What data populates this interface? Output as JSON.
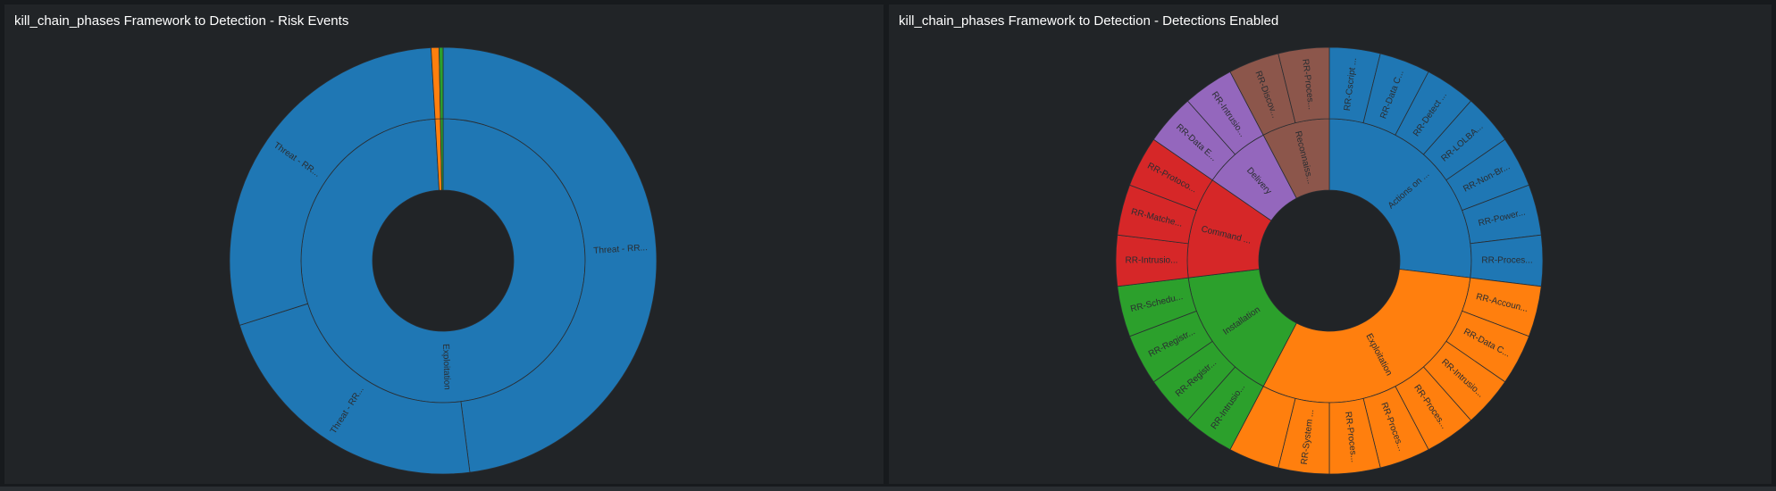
{
  "panels": [
    {
      "title": "kill_chain_phases Framework to Detection - Risk Events"
    },
    {
      "title": "kill_chain_phases Framework to Detection - Detections Enabled"
    }
  ],
  "chart_data": [
    {
      "type": "sunburst",
      "title": "kill_chain_phases Framework to Detection - Risk Events",
      "colors": {
        "blue": "#1f77b4",
        "orange": "#ff7f0e",
        "green": "#2ca02c"
      },
      "nodes": [
        {
          "name": "Exploitation",
          "label": "Exploitation",
          "value": 991,
          "color": "#1f77b4",
          "children": [
            {
              "name": "Threat - RR...",
              "label": "Threat - RR...",
              "value": 480
            },
            {
              "name": "Threat - RR...",
              "label": "Threat - RR...",
              "value": 221
            },
            {
              "name": "Threat - RR...",
              "label": "Threat - RR...",
              "value": 290
            }
          ]
        },
        {
          "name": "",
          "label": "",
          "value": 6,
          "color": "#ff7f0e",
          "children": [
            {
              "name": "",
              "label": "",
              "value": 6
            }
          ]
        },
        {
          "name": "",
          "label": "",
          "value": 3,
          "color": "#2ca02c",
          "children": [
            {
              "name": "",
              "label": "",
              "value": 3
            }
          ]
        }
      ]
    },
    {
      "type": "sunburst",
      "title": "kill_chain_phases Framework to Detection - Detections Enabled",
      "colors": {
        "blue": "#1f77b4",
        "orange": "#ff7f0e",
        "green": "#2ca02c",
        "red": "#d62728",
        "purple": "#9467bd",
        "brown": "#8c564b"
      },
      "nodes": [
        {
          "name": "Actions on ...",
          "label": "Actions on ...",
          "value": 7,
          "color": "#1f77b4",
          "children": [
            {
              "name": "RR-Cscript ...",
              "label": "RR-Cscript ...",
              "value": 1
            },
            {
              "name": "RR-Data C...",
              "label": "RR-Data C...",
              "value": 1
            },
            {
              "name": "RR-Detect ...",
              "label": "RR-Detect ...",
              "value": 1
            },
            {
              "name": "RR-LOLBA...",
              "label": "RR-LOLBA...",
              "value": 1
            },
            {
              "name": "RR-Non-Br...",
              "label": "RR-Non-Br...",
              "value": 1
            },
            {
              "name": "RR-Power...",
              "label": "RR-Power...",
              "value": 1
            },
            {
              "name": "RR-Proces...",
              "label": "RR-Proces...",
              "value": 1
            }
          ]
        },
        {
          "name": "Exploitation",
          "label": "Exploitation",
          "value": 8,
          "color": "#ff7f0e",
          "children": [
            {
              "name": "RR-Accoun...",
              "label": "RR-Accoun...",
              "value": 1
            },
            {
              "name": "RR-Data C...",
              "label": "RR-Data C...",
              "value": 1
            },
            {
              "name": "RR-Intrusio...",
              "label": "RR-Intrusio...",
              "value": 1
            },
            {
              "name": "RR-Proces...",
              "label": "RR-Proces...",
              "value": 1
            },
            {
              "name": "RR-Proces...",
              "label": "RR-Proces...",
              "value": 1
            },
            {
              "name": "RR-Proces...",
              "label": "RR-Proces...",
              "value": 1
            },
            {
              "name": "RR-System ...",
              "label": "RR-System ...",
              "value": 1
            },
            {
              "name": "",
              "label": "",
              "value": 1
            }
          ]
        },
        {
          "name": "Installation",
          "label": "Installation",
          "value": 4,
          "color": "#2ca02c",
          "children": [
            {
              "name": "RR-Intrusio...",
              "label": "RR-Intrusio...",
              "value": 1
            },
            {
              "name": "RR-Registr...",
              "label": "RR-Registr...",
              "value": 1
            },
            {
              "name": "RR-Registr...",
              "label": "RR-Registr...",
              "value": 1
            },
            {
              "name": "RR-Schedu...",
              "label": "RR-Schedu...",
              "value": 1
            }
          ]
        },
        {
          "name": "Command ...",
          "label": "Command ...",
          "value": 3,
          "color": "#d62728",
          "children": [
            {
              "name": "RR-Intrusio...",
              "label": "RR-Intrusio...",
              "value": 1
            },
            {
              "name": "RR-Matche...",
              "label": "RR-Matche...",
              "value": 1
            },
            {
              "name": "RR-Protoco...",
              "label": "RR-Protoco...",
              "value": 1
            }
          ]
        },
        {
          "name": "Delivery",
          "label": "Delivery",
          "value": 2,
          "color": "#9467bd",
          "children": [
            {
              "name": "RR-Data E...",
              "label": "RR-Data E...",
              "value": 1
            },
            {
              "name": "RR-Intrusio...",
              "label": "RR-Intrusio...",
              "value": 1
            }
          ]
        },
        {
          "name": "Reconnaiss...",
          "label": "Reconnaiss...",
          "value": 2,
          "color": "#8c564b",
          "children": [
            {
              "name": "RR-Discov...",
              "label": "RR-Discov...",
              "value": 1
            },
            {
              "name": "RR-Proces...",
              "label": "RR-Proces...",
              "value": 1
            }
          ]
        }
      ]
    }
  ]
}
